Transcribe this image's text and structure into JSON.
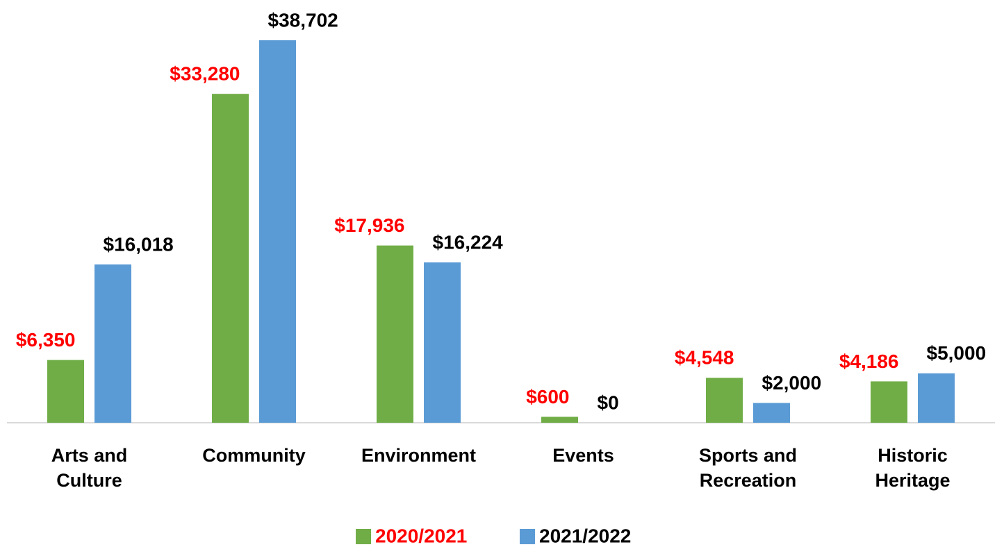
{
  "chart_data": {
    "type": "bar",
    "categories": [
      "Arts and Culture",
      "Community",
      "Environment",
      "Events",
      "Sports and Recreation",
      "Historic Heritage"
    ],
    "series": [
      {
        "name": "2020/2021",
        "color": "#70ad47",
        "label_color": "#ff0000",
        "values": [
          6350,
          33280,
          17936,
          600,
          4548,
          4186
        ],
        "value_labels": [
          "$6,350",
          "$33,280",
          "$17,936",
          "$600",
          "$4,548",
          "$4,186"
        ]
      },
      {
        "name": "2021/2022",
        "color": "#5b9bd5",
        "label_color": "#000000",
        "values": [
          16018,
          38702,
          16224,
          0,
          2000,
          5000
        ],
        "value_labels": [
          "$16,018",
          "$38,702",
          "$16,224",
          "$0",
          "$2,000",
          "$5,000"
        ]
      }
    ],
    "legend": "bottom"
  }
}
